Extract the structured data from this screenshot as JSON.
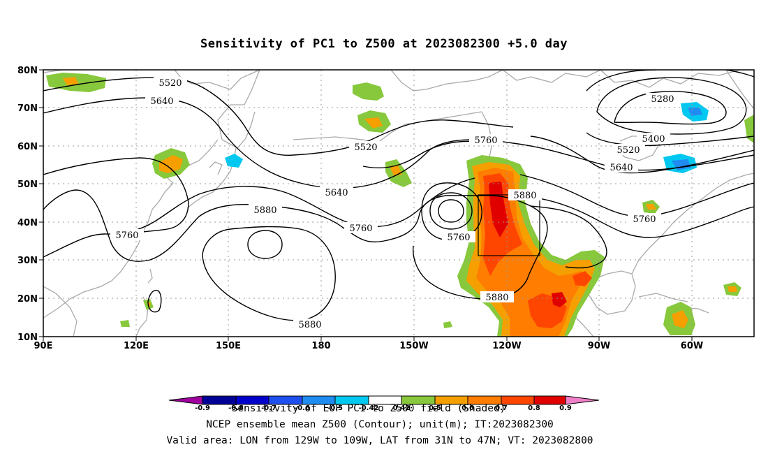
{
  "title": "Sensitivity of PC1 to Z500 at 2023082300 +5.0 day",
  "axes": {
    "lat_ticks": [
      "80N",
      "70N",
      "60N",
      "50N",
      "40N",
      "30N",
      "20N",
      "10N"
    ],
    "lon_ticks": [
      "90E",
      "120E",
      "150E",
      "180",
      "150W",
      "120W",
      "90W",
      "60W"
    ]
  },
  "contours": {
    "units": "m",
    "labels": [
      "5520",
      "5640",
      "5280",
      "5400",
      "5520",
      "5640",
      "5520",
      "5760",
      "5640",
      "5880",
      "5760",
      "5880",
      "5760",
      "5760",
      "5760",
      "5880",
      "5880"
    ]
  },
  "valid_area": {
    "lon_min": "129W",
    "lon_max": "109W",
    "lat_min": "31N",
    "lat_max": "47N"
  },
  "colorbar": {
    "labels": [
      "-0.9",
      "-0.8",
      "-0.7",
      "-0.6",
      "-0.5",
      "-0.42",
      "0.42",
      "0.5",
      "0.6",
      "0.7",
      "0.8",
      "0.9"
    ],
    "colors": [
      "#a0009f",
      "#000096",
      "#0000cd",
      "#1f4ff0",
      "#1e8cf0",
      "#00c8f0",
      "#ffffff",
      "#87c83c",
      "#f5a000",
      "#ff7d00",
      "#ff4600",
      "#e10000",
      "#f07fc8"
    ]
  },
  "footer": {
    "line1": "Sensitivity of EOF PC1 to Z500 field (Shaded)",
    "line2": "NCEP ensemble mean Z500 (Contour); unit(m); IT:2023082300",
    "line3": "Valid area: LON from 129W to 109W, LAT from 31N to 47N; VT: 2023082800"
  }
}
